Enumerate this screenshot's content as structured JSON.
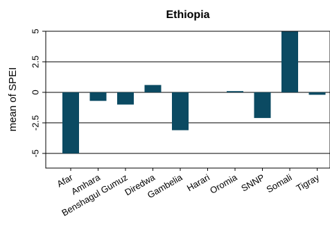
{
  "chart_data": {
    "type": "bar",
    "title": "Ethiopia",
    "xlabel": "",
    "ylabel": "mean of SPEI",
    "categories": [
      "Afar",
      "Amhara",
      "Benshagul Gumuz",
      "Diredwa",
      "Gambelia",
      "Harari",
      "Oromia",
      "SNNP",
      "Somali",
      "Tigray"
    ],
    "values": [
      -5.0,
      -0.7,
      -1.0,
      0.6,
      -3.1,
      0.0,
      0.1,
      -2.1,
      5.0,
      -0.2
    ],
    "yticks": [
      "-5",
      "-2.5",
      "0",
      "2.5",
      "5"
    ],
    "ytick_values": [
      -5,
      -2.5,
      0,
      2.5,
      5
    ],
    "ylim": [
      -6.2,
      5
    ],
    "grid": true,
    "bar_color": "#0b4a62"
  }
}
